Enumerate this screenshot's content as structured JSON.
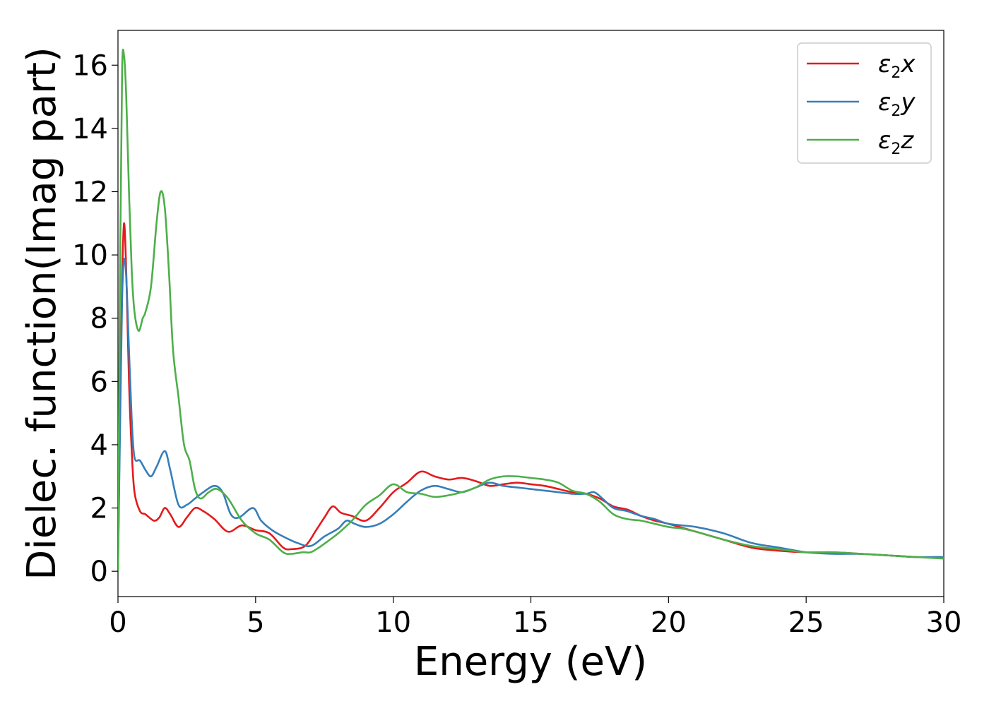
{
  "chart_data": {
    "type": "line",
    "title": "",
    "xlabel": "Energy (eV)",
    "ylabel": "Dielec. function(Imag part)",
    "xlim": [
      0,
      30
    ],
    "ylim": [
      -0.8,
      17.1
    ],
    "xticks": [
      0,
      5,
      10,
      15,
      20,
      25,
      30
    ],
    "yticks": [
      0,
      2,
      4,
      6,
      8,
      10,
      12,
      14,
      16
    ],
    "grid": false,
    "legend_position": "top-right",
    "series": [
      {
        "name": "ε2x",
        "legend": {
          "base": "ε",
          "sub": "2",
          "tail": "x"
        },
        "color": "#e41a1c",
        "x": [
          0,
          0.08,
          0.15,
          0.22,
          0.3,
          0.4,
          0.5,
          0.6,
          0.8,
          1.0,
          1.3,
          1.5,
          1.7,
          1.9,
          2.2,
          2.5,
          2.8,
          3.1,
          3.5,
          4.0,
          4.5,
          5.0,
          5.5,
          6.0,
          6.3,
          6.8,
          7.2,
          7.5,
          7.8,
          8.1,
          8.5,
          9.0,
          9.5,
          10.0,
          10.5,
          11.0,
          11.5,
          12.0,
          12.5,
          13.0,
          13.5,
          14.0,
          14.5,
          15.0,
          15.5,
          16.0,
          16.5,
          17.0,
          17.5,
          18.0,
          18.5,
          19.0,
          19.5,
          20.0,
          21.0,
          22.0,
          23.0,
          24.0,
          25.0,
          26.0,
          27.0,
          28.0,
          29.0,
          30.0
        ],
        "y": [
          0,
          5.5,
          9.2,
          11.0,
          9.5,
          6.0,
          3.8,
          2.5,
          1.9,
          1.8,
          1.6,
          1.7,
          2.0,
          1.8,
          1.4,
          1.7,
          2.0,
          1.9,
          1.65,
          1.25,
          1.45,
          1.3,
          1.2,
          0.75,
          0.7,
          0.8,
          1.3,
          1.7,
          2.05,
          1.85,
          1.75,
          1.6,
          2.0,
          2.5,
          2.8,
          3.15,
          3.0,
          2.9,
          2.95,
          2.85,
          2.7,
          2.75,
          2.8,
          2.75,
          2.7,
          2.6,
          2.5,
          2.45,
          2.3,
          2.05,
          1.95,
          1.75,
          1.6,
          1.5,
          1.25,
          1.0,
          0.75,
          0.65,
          0.6,
          0.6,
          0.55,
          0.5,
          0.45,
          0.45
        ]
      },
      {
        "name": "ε2y",
        "legend": {
          "base": "ε",
          "sub": "2",
          "tail": "y"
        },
        "color": "#377eb8",
        "x": [
          0,
          0.08,
          0.15,
          0.22,
          0.3,
          0.4,
          0.5,
          0.6,
          0.8,
          1.0,
          1.2,
          1.4,
          1.7,
          1.9,
          2.2,
          2.5,
          2.8,
          3.1,
          3.5,
          3.8,
          4.1,
          4.4,
          4.9,
          5.2,
          5.6,
          6.0,
          6.5,
          7.0,
          7.5,
          8.0,
          8.3,
          8.6,
          9.0,
          9.5,
          10.0,
          10.5,
          11.0,
          11.5,
          12.0,
          12.5,
          13.0,
          13.5,
          14.0,
          14.5,
          15.0,
          15.5,
          16.0,
          16.5,
          17.0,
          17.3,
          17.6,
          18.0,
          18.5,
          19.0,
          19.5,
          20.0,
          21.0,
          22.0,
          23.0,
          24.0,
          25.0,
          26.0,
          27.0,
          28.0,
          29.0,
          30.0
        ],
        "y": [
          0,
          4.8,
          8.6,
          9.85,
          9.3,
          7.0,
          4.8,
          3.6,
          3.5,
          3.2,
          3.0,
          3.3,
          3.8,
          3.2,
          2.1,
          2.1,
          2.3,
          2.5,
          2.7,
          2.5,
          1.8,
          1.7,
          2.0,
          1.6,
          1.3,
          1.1,
          0.9,
          0.8,
          1.1,
          1.35,
          1.6,
          1.5,
          1.4,
          1.5,
          1.8,
          2.2,
          2.55,
          2.7,
          2.6,
          2.5,
          2.65,
          2.8,
          2.7,
          2.65,
          2.6,
          2.55,
          2.5,
          2.45,
          2.45,
          2.5,
          2.3,
          2.0,
          1.9,
          1.75,
          1.65,
          1.5,
          1.4,
          1.2,
          0.9,
          0.75,
          0.6,
          0.55,
          0.55,
          0.5,
          0.45,
          0.45
        ]
      },
      {
        "name": "ε2z",
        "legend": {
          "base": "ε",
          "sub": "2",
          "tail": "z"
        },
        "color": "#4daf4a",
        "x": [
          0,
          0.08,
          0.15,
          0.22,
          0.3,
          0.4,
          0.5,
          0.6,
          0.75,
          0.9,
          1.0,
          1.2,
          1.4,
          1.55,
          1.7,
          1.85,
          2.0,
          2.2,
          2.4,
          2.6,
          2.8,
          3.0,
          3.3,
          3.6,
          4.0,
          4.5,
          5.0,
          5.5,
          6.0,
          6.3,
          6.7,
          7.0,
          7.3,
          7.7,
          8.0,
          8.5,
          9.0,
          9.5,
          10.0,
          10.5,
          11.0,
          11.5,
          12.0,
          12.5,
          13.0,
          13.5,
          14.0,
          14.5,
          15.0,
          15.5,
          16.0,
          16.5,
          17.0,
          17.5,
          18.0,
          18.5,
          19.0,
          19.5,
          20.0,
          20.5,
          21.0,
          22.0,
          23.0,
          24.0,
          25.0,
          26.0,
          27.0,
          28.0,
          29.0,
          30.0
        ],
        "y": [
          0,
          10.0,
          15.8,
          16.3,
          15.0,
          12.0,
          9.5,
          8.2,
          7.6,
          8.0,
          8.2,
          9.0,
          11.0,
          12.0,
          11.5,
          9.5,
          7.0,
          5.5,
          4.0,
          3.5,
          2.6,
          2.3,
          2.5,
          2.6,
          2.3,
          1.6,
          1.2,
          1.0,
          0.6,
          0.55,
          0.6,
          0.6,
          0.75,
          1.0,
          1.2,
          1.6,
          2.1,
          2.4,
          2.75,
          2.5,
          2.45,
          2.35,
          2.4,
          2.5,
          2.65,
          2.9,
          3.0,
          3.0,
          2.95,
          2.9,
          2.8,
          2.55,
          2.45,
          2.2,
          1.8,
          1.65,
          1.6,
          1.5,
          1.4,
          1.35,
          1.25,
          1.0,
          0.8,
          0.7,
          0.6,
          0.6,
          0.55,
          0.5,
          0.45,
          0.4
        ]
      }
    ]
  }
}
